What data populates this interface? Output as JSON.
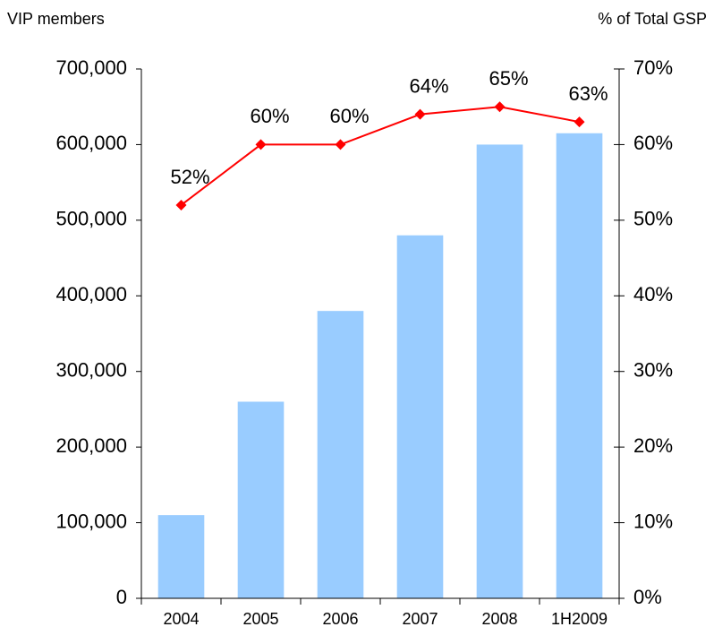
{
  "chart_data": {
    "type": "bar_line",
    "y_label": "VIP members",
    "y2_label": "% of Total GSP",
    "categories": [
      "2004",
      "2005",
      "2006",
      "2007",
      "2008",
      "1H2009"
    ],
    "series": [
      {
        "name": "VIP members",
        "type": "bar",
        "color": "#99ccff",
        "values": [
          110000,
          260000,
          380000,
          480000,
          600000,
          615000
        ]
      },
      {
        "name": "% of Total GSP",
        "type": "line",
        "axis": "y2",
        "color": "#ff0000",
        "values": [
          52,
          60,
          60,
          64,
          65,
          63
        ],
        "value_labels": [
          "52%",
          "60%",
          "60%",
          "64%",
          "65%",
          "63%"
        ]
      }
    ],
    "ylim": [
      0,
      700000
    ],
    "yticks": [
      0,
      {
        "value": 100000,
        "label": "100,000"
      },
      {
        "value": 200000,
        "label": "200,000"
      },
      {
        "value": 300000,
        "label": "300,000"
      },
      {
        "value": 400000,
        "label": "400,000"
      },
      {
        "value": 500000,
        "label": "500,000"
      },
      {
        "value": 600000,
        "label": "600,000"
      },
      {
        "value": 700000,
        "label": "700,000"
      }
    ],
    "y2lim": [
      0,
      70
    ],
    "y2ticks": [
      {
        "value": 0,
        "label": "0%"
      },
      {
        "value": 10,
        "label": "10%"
      },
      {
        "value": 20,
        "label": "20%"
      },
      {
        "value": 30,
        "label": "30%"
      },
      {
        "value": 40,
        "label": "40%"
      },
      {
        "value": 50,
        "label": "50%"
      },
      {
        "value": 60,
        "label": "60%"
      },
      {
        "value": 70,
        "label": "70%"
      }
    ]
  }
}
